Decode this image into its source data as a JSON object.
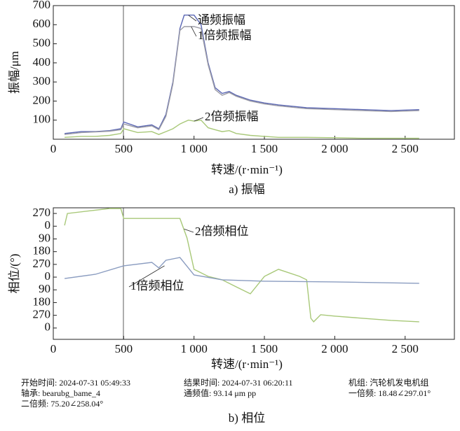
{
  "chart_data": [
    {
      "type": "line",
      "ylabel": "振幅/μm",
      "xlabel": "转速/(r·min⁻¹)",
      "caption": "a) 振幅",
      "xlim": [
        0,
        2850
      ],
      "ylim": [
        0,
        700
      ],
      "xticks": [
        0,
        500,
        {
          "value": 1000,
          "label": "1 000"
        },
        {
          "value": 1500,
          "label": "1 500"
        },
        {
          "value": 2000,
          "label": "2 000"
        },
        {
          "value": 2500,
          "label": "2 500"
        }
      ],
      "yticks": [
        100,
        200,
        300,
        400,
        500,
        600,
        700
      ],
      "x": [
        80,
        200,
        300,
        400,
        480,
        500,
        600,
        700,
        750,
        800,
        850,
        900,
        930,
        960,
        1000,
        1050,
        1100,
        1150,
        1200,
        1250,
        1300,
        1400,
        1500,
        1600,
        1800,
        2000,
        2200,
        2400,
        2600
      ],
      "series": [
        {
          "name": "通频振幅",
          "color": "#5a66b4",
          "values": [
            30,
            40,
            40,
            45,
            55,
            90,
            65,
            75,
            55,
            130,
            300,
            580,
            650,
            650,
            650,
            600,
            400,
            270,
            240,
            250,
            230,
            205,
            190,
            180,
            165,
            160,
            155,
            150,
            155
          ]
        },
        {
          "name": "1倍频振幅",
          "color": "#9c9ca6",
          "values": [
            25,
            35,
            38,
            42,
            50,
            80,
            60,
            70,
            50,
            120,
            290,
            570,
            590,
            590,
            590,
            580,
            390,
            260,
            230,
            245,
            225,
            200,
            185,
            175,
            160,
            155,
            150,
            145,
            150
          ]
        },
        {
          "name": "2倍频振幅",
          "color": "#a8c878",
          "values": [
            10,
            15,
            15,
            20,
            30,
            55,
            35,
            40,
            25,
            40,
            55,
            80,
            90,
            100,
            95,
            100,
            60,
            50,
            40,
            45,
            30,
            20,
            15,
            10,
            10,
            8,
            5,
            5,
            5
          ]
        }
      ]
    },
    {
      "type": "line",
      "ylabel": "相位/(°)",
      "xlabel": "转速/(r·min⁻¹)",
      "caption": "b) 相位",
      "xlim": [
        0,
        2850
      ],
      "ylim": [
        -80,
        850
      ],
      "xticks": [
        0,
        500,
        {
          "value": 1000,
          "label": "1 000"
        },
        {
          "value": 1500,
          "label": "1 500"
        },
        {
          "value": 2000,
          "label": "2 000"
        },
        {
          "value": 2500,
          "label": "2 500"
        }
      ],
      "yticks": [
        0,
        {
          "value": 90,
          "label": "270"
        },
        {
          "value": 180,
          "label": "180"
        },
        {
          "value": 270,
          "label": "90"
        },
        {
          "value": 360,
          "label": "0"
        },
        {
          "value": 450,
          "label": "270"
        },
        {
          "value": 540,
          "label": "180"
        },
        {
          "value": 630,
          "label": "90"
        },
        {
          "value": 720,
          "label": "0"
        },
        {
          "value": 810,
          "label": "270"
        }
      ],
      "series": [
        {
          "name": "2倍频相位",
          "color": "#a8c878",
          "x": [
            80,
            100,
            400,
            480,
            500,
            900,
            950,
            1000,
            1100,
            1200,
            1300,
            1400,
            1500,
            1600,
            1750,
            1800,
            1830,
            1850,
            1900,
            2000,
            2200,
            2400,
            2600
          ],
          "values": [
            726,
            810,
            845,
            845,
            775,
            775,
            637,
            415,
            365,
            341,
            291,
            242,
            365,
            415,
            365,
            341,
            69,
            44,
            94,
            84,
            69,
            54,
            44
          ]
        },
        {
          "name": "1倍频相位",
          "color": "#8a9cc0",
          "x": [
            80,
            300,
            500,
            700,
            750,
            800,
            900,
            1000,
            1200,
            1500,
            2000,
            2600
          ],
          "values": [
            350,
            380,
            440,
            464,
            425,
            479,
            499,
            375,
            341,
            331,
            326,
            316
          ]
        }
      ]
    }
  ],
  "info": [
    [
      "开始时间: 2024-07-31 05:49:33",
      "轴承: bearubg_bame_4",
      "二倍频: 75.20∠258.04°"
    ],
    [
      "结果时间: 2024-07-31 06:20:11",
      "通频值: 93.14 μm pp"
    ],
    [
      "机组: 汽轮机发电机组",
      "一倍频: 18.48∠297.01°"
    ]
  ]
}
